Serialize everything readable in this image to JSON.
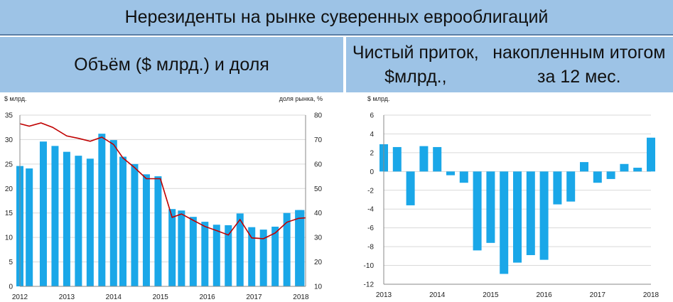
{
  "header": {
    "title": "Нерезиденты на рынке суверенных еврооблигаций",
    "left_subtitle": "Объём ($ млрд.) и доля",
    "right_subtitle_line1": "Чистый приток, $млрд.,",
    "right_subtitle_line2": "накопленным итогом за 12 мес."
  },
  "colors": {
    "bar": "#1aa7e8",
    "line": "#c00000",
    "grid": "#d9d9d9",
    "header_bg": "#9dc3e6"
  },
  "chart_data": [
    {
      "type": "bar",
      "title": "",
      "ylabel": "$ млрд.",
      "y2label": "доля рынка, %",
      "ylim": [
        0,
        35
      ],
      "y2lim": [
        10,
        80
      ],
      "yticks": [
        "0",
        "5",
        "10",
        "15",
        "20",
        "25",
        "30",
        "35"
      ],
      "y2ticks": [
        "10",
        "20",
        "30",
        "40",
        "50",
        "60",
        "70",
        "80"
      ],
      "xticks": [
        "2012",
        "2013",
        "2014",
        "2015",
        "2016",
        "2017",
        "2018"
      ],
      "xlim": [
        2012,
        2018.1
      ],
      "grid": true,
      "series": [
        {
          "type": "bar",
          "axis": "left",
          "x": [
            2012.0,
            2012.2,
            2012.5,
            2012.75,
            2013.0,
            2013.25,
            2013.5,
            2013.75,
            2014.0,
            2014.2,
            2014.45,
            2014.7,
            2014.95,
            2015.25,
            2015.45,
            2015.7,
            2015.95,
            2016.2,
            2016.45,
            2016.7,
            2016.95,
            2017.2,
            2017.45,
            2017.7,
            2017.95,
            2018.0
          ],
          "values": [
            24.6,
            24.1,
            29.6,
            28.7,
            27.5,
            26.7,
            26.1,
            31.2,
            29.9,
            26.5,
            25.0,
            22.9,
            22.5,
            15.8,
            15.5,
            14.2,
            13.2,
            12.6,
            12.5,
            14.9,
            12.1,
            11.6,
            12.2,
            15.0,
            15.6,
            15.6
          ]
        },
        {
          "type": "line",
          "axis": "right",
          "x": [
            2012.0,
            2012.2,
            2012.45,
            2012.7,
            2013.0,
            2013.25,
            2013.5,
            2013.75,
            2014.0,
            2014.2,
            2014.45,
            2014.7,
            2015.0,
            2015.25,
            2015.45,
            2015.7,
            2015.95,
            2016.2,
            2016.45,
            2016.7,
            2016.95,
            2017.2,
            2017.45,
            2017.7,
            2017.95,
            2018.1
          ],
          "values": [
            76.5,
            75.5,
            76.8,
            75.0,
            71.5,
            70.5,
            69.3,
            71.0,
            68.0,
            62.5,
            58.5,
            54.0,
            54.0,
            38.2,
            39.6,
            37.0,
            34.5,
            32.8,
            31.0,
            37.3,
            29.8,
            29.5,
            31.8,
            36.2,
            37.8,
            38.0
          ]
        }
      ]
    },
    {
      "type": "bar",
      "title": "",
      "ylabel": "$ млрд.",
      "ylim": [
        -12,
        6
      ],
      "yticks": [
        "-12",
        "-10",
        "-8",
        "-6",
        "-4",
        "-2",
        "0",
        "2",
        "4",
        "6"
      ],
      "xticks": [
        "2013",
        "2014",
        "2015",
        "2016",
        "2017",
        "2018"
      ],
      "xlim": [
        2013,
        2018
      ],
      "grid": true,
      "series": [
        {
          "type": "bar",
          "x": [
            2013.0,
            2013.25,
            2013.5,
            2013.75,
            2014.0,
            2014.25,
            2014.5,
            2014.75,
            2015.0,
            2015.25,
            2015.5,
            2015.75,
            2016.0,
            2016.25,
            2016.5,
            2016.75,
            2017.0,
            2017.25,
            2017.5,
            2017.75,
            2018.0
          ],
          "values": [
            2.9,
            2.6,
            -3.6,
            2.7,
            2.6,
            -0.4,
            -1.2,
            -8.4,
            -7.6,
            -10.9,
            -9.7,
            -8.9,
            -9.4,
            -3.5,
            -3.2,
            1.0,
            -1.2,
            -0.8,
            0.8,
            0.4,
            3.6
          ]
        }
      ]
    }
  ]
}
